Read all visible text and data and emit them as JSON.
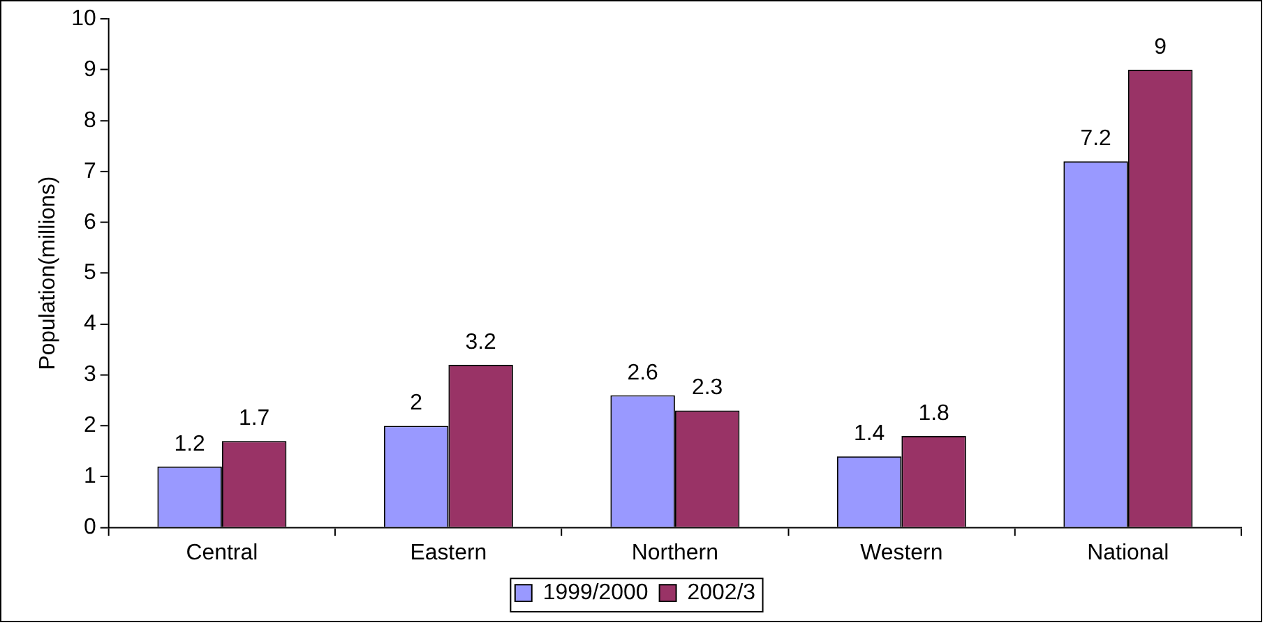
{
  "chart_data": {
    "type": "bar",
    "ylabel": "Population(millions)",
    "categories": [
      "Central",
      "Eastern",
      "Northern",
      "Western",
      "National"
    ],
    "series": [
      {
        "name": "1999/2000",
        "color": "#9999ff",
        "values": [
          1.2,
          2,
          2.6,
          1.4,
          7.2
        ]
      },
      {
        "name": "2002/3",
        "color": "#993366",
        "values": [
          1.7,
          3.2,
          2.3,
          1.8,
          9
        ]
      }
    ],
    "ylim": [
      0,
      10
    ],
    "yticks": [
      0,
      1,
      2,
      3,
      4,
      5,
      6,
      7,
      8,
      9,
      10
    ],
    "grid": false,
    "legend": "bottom",
    "data_labels": true
  }
}
